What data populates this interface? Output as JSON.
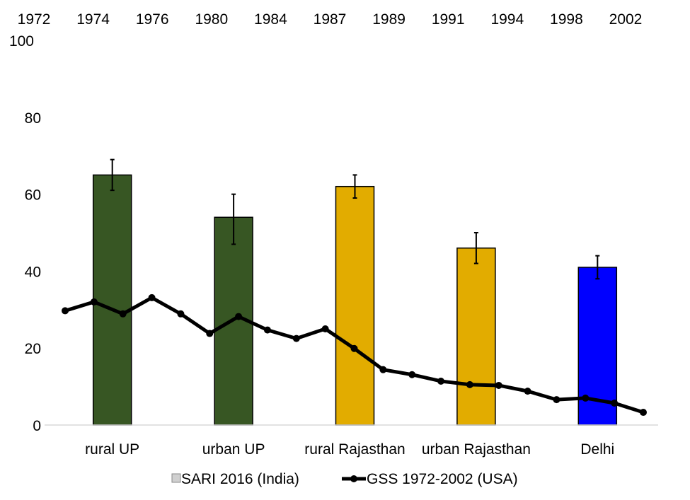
{
  "chart_data": {
    "type": "bar+line",
    "categories": [
      "rural UP",
      "urban UP",
      "rural Rajasthan",
      "urban Rajasthan",
      "Delhi"
    ],
    "ylim": [
      0,
      100
    ],
    "yticks": [
      0,
      20,
      40,
      60,
      80,
      100
    ],
    "grid": false,
    "legend_position": "bottom",
    "bar_series": {
      "name": "SARI 2016 (India)",
      "legend_color": "#d0d0d0",
      "values": [
        65,
        54,
        62,
        46,
        41
      ],
      "error_low": [
        61,
        47,
        59,
        42,
        38
      ],
      "error_high": [
        69,
        60,
        65,
        50,
        44
      ],
      "colors": [
        "#375623",
        "#375623",
        "#e2ac00",
        "#e2ac00",
        "#0000ff"
      ]
    },
    "line_series": {
      "name": "GSS 1972-2002 (USA)",
      "color": "#000000",
      "secondary_x_tick_labels": [
        "1972",
        "1974",
        "1976",
        "1980",
        "1984",
        "1987",
        "1989",
        "1991",
        "1994",
        "1998",
        "2002"
      ],
      "values": [
        29.7,
        32.0,
        28.9,
        33.1,
        28.9,
        23.8,
        28.2,
        24.7,
        22.5,
        25.0,
        19.9,
        14.4,
        13.1,
        11.4,
        10.5,
        10.3,
        8.8,
        6.6,
        7.0,
        5.7,
        3.3
      ]
    }
  }
}
